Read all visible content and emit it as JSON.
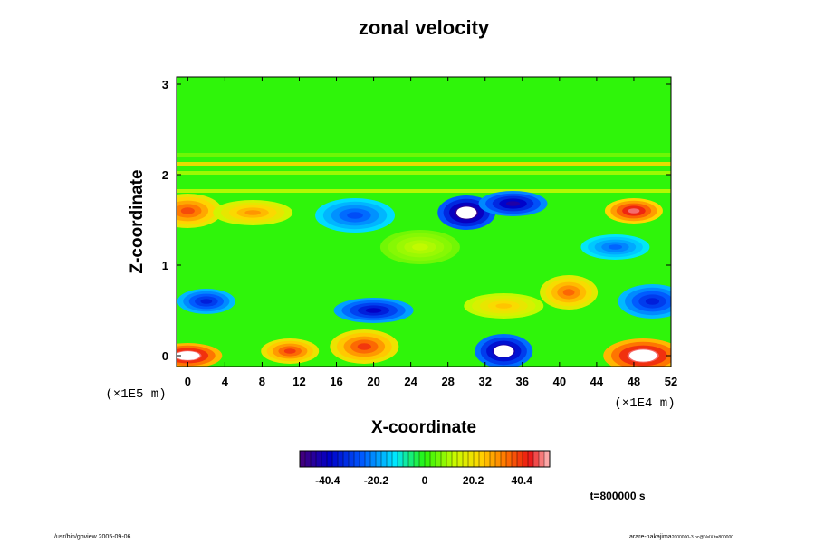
{
  "chart_data": {
    "type": "heatmap",
    "title": "zonal velocity",
    "xlabel": "X-coordinate",
    "ylabel": "Z-coordinate",
    "x_units": "(×1E4 m)",
    "y_units": "(×1E5 m)",
    "xlim": [
      -1.2,
      52
    ],
    "ylim": [
      -0.12,
      3.08
    ],
    "x_ticks": [
      "0",
      "4",
      "8",
      "12",
      "16",
      "20",
      "24",
      "28",
      "32",
      "36",
      "40",
      "44",
      "48",
      "52"
    ],
    "y_ticks": [
      "0",
      "1",
      "2",
      "3"
    ],
    "colorbar_range": [
      -52,
      52
    ],
    "colorbar_ticks": [
      "-40.4",
      "-20.2",
      "0",
      "20.2",
      "40.4"
    ],
    "time_label": "t=800000 s",
    "features": [
      {
        "x": 48,
        "z": 1.6,
        "value": 48
      },
      {
        "x": 0,
        "z": 1.6,
        "value": 38
      },
      {
        "x": 7,
        "z": 1.58,
        "value": 30
      },
      {
        "x": 30,
        "z": 1.58,
        "value": -55
      },
      {
        "x": 35,
        "z": 1.68,
        "value": -45
      },
      {
        "x": 18,
        "z": 1.55,
        "value": -28
      },
      {
        "x": 2,
        "z": 0.6,
        "value": -35
      },
      {
        "x": 50,
        "z": 0.6,
        "value": -35
      },
      {
        "x": 20,
        "z": 0.5,
        "value": -40
      },
      {
        "x": 34,
        "z": 0.05,
        "value": -50
      },
      {
        "x": 0,
        "z": 0.0,
        "value": 55
      },
      {
        "x": 49,
        "z": 0.0,
        "value": 55
      },
      {
        "x": 11,
        "z": 0.05,
        "value": 40
      },
      {
        "x": 19,
        "z": 0.1,
        "value": 40
      },
      {
        "x": 34,
        "z": 0.55,
        "value": 25
      },
      {
        "x": 41,
        "z": 0.7,
        "value": 35
      },
      {
        "x": 46,
        "z": 1.2,
        "value": -25
      },
      {
        "x": 25,
        "z": 1.2,
        "value": 12
      }
    ]
  },
  "footer": {
    "left": "/usr/bin/gpview 2005-09-06",
    "right": "arare-nakajima",
    "right_sub": "2000000-3.nc@VelX,t=800000"
  }
}
